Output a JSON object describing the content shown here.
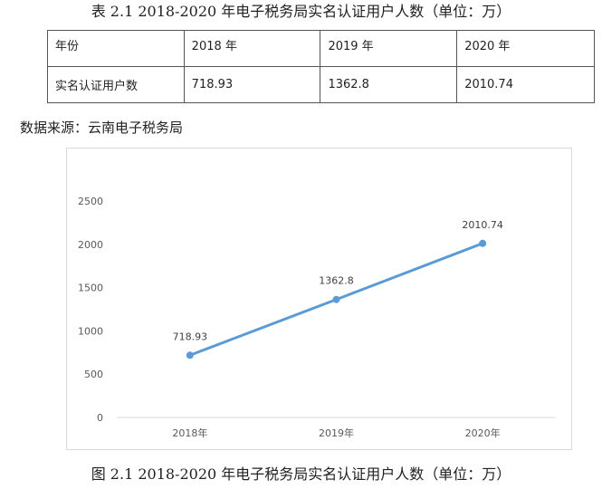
{
  "table_caption": "表 2.1 2018-2020 年电子税务局实名认证用户人数（单位：万）",
  "table": {
    "header": [
      "年份",
      "2018 年",
      "2019 年",
      "2020 年"
    ],
    "row": [
      "实名认证用户数",
      "718.93",
      "1362.8",
      "2010.74"
    ]
  },
  "source_note": "数据来源：云南电子税务局",
  "figure_caption": "图 2.1 2018-2020 年电子税务局实名认证用户人数（单位：万）",
  "chart_data": {
    "type": "line",
    "categories": [
      "2018年",
      "2019年",
      "2020年"
    ],
    "values": [
      718.93,
      1362.8,
      2010.74
    ],
    "value_labels": [
      "718.93",
      "1362.8",
      "2010.74"
    ],
    "ylim": [
      0,
      2500
    ],
    "yticks": [
      "0",
      "500",
      "1000",
      "1500",
      "2000",
      "2500"
    ],
    "grid": false,
    "line_color": "#5b9bd5",
    "axis_color": "#d9d9d9",
    "title": "",
    "xlabel": "",
    "ylabel": ""
  }
}
